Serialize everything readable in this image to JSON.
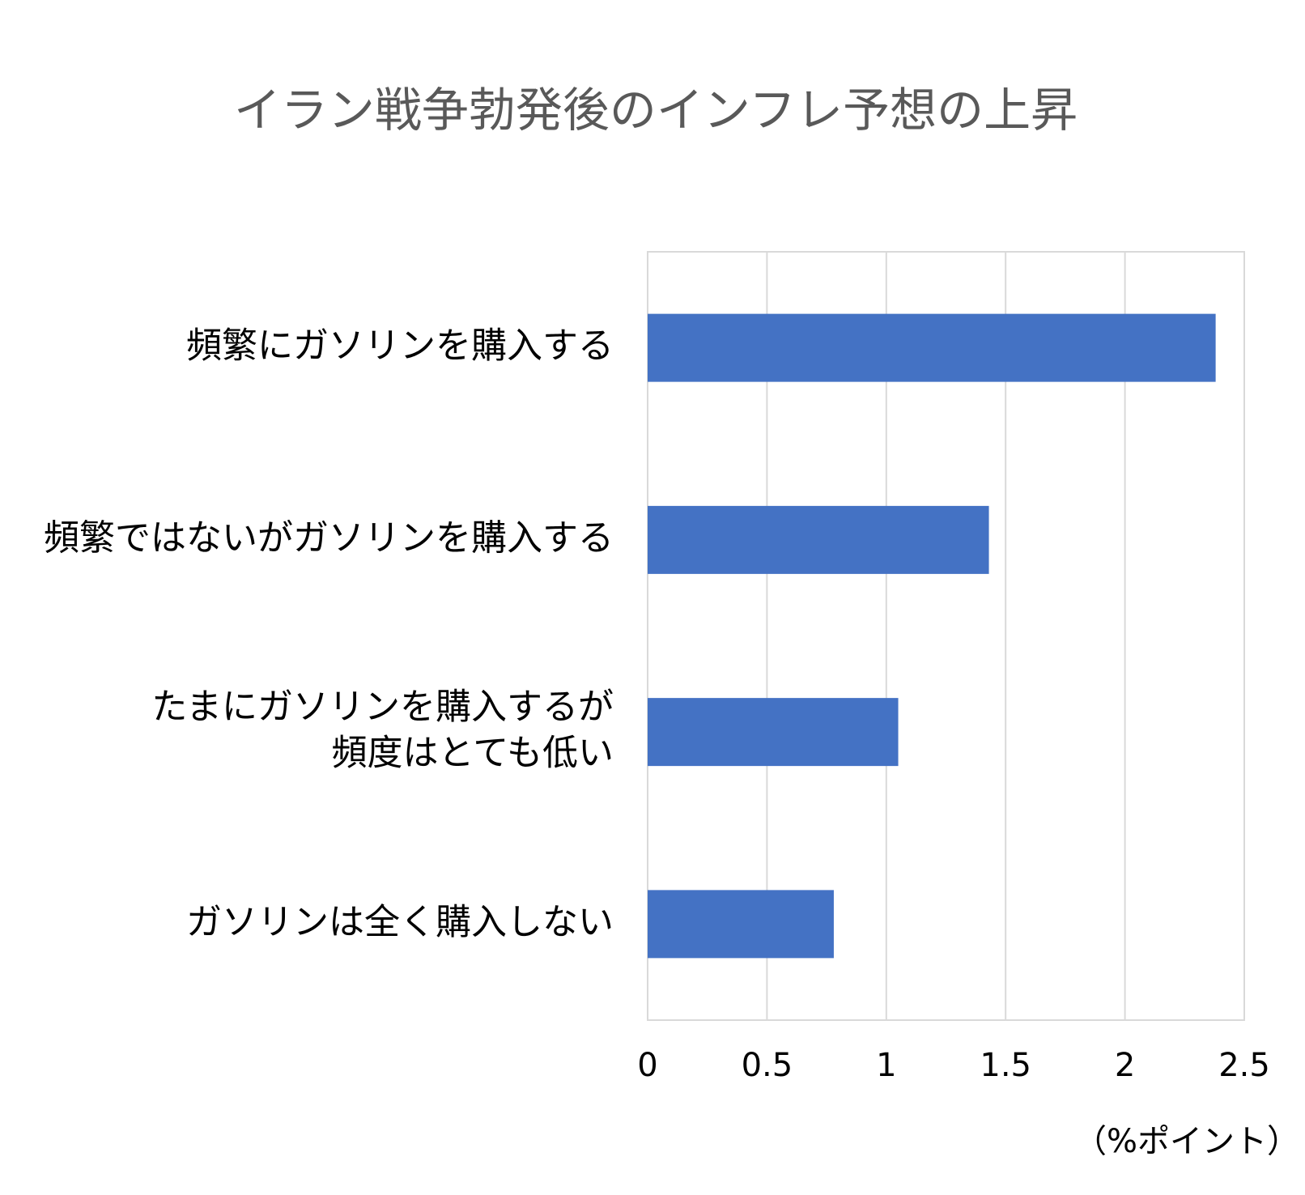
{
  "chart_data": {
    "type": "bar",
    "orientation": "horizontal",
    "title": "イラン戦争勃発後のインフレ予想の上昇",
    "x_label": "（%ポイント）",
    "categories": [
      "頻繁にガソリンを購入する",
      "頻繁ではないがガソリンを購入する",
      "たまにガソリンを購入するが\n頻度はとても低い",
      "ガソリンは全く購入しない"
    ],
    "values": [
      2.38,
      1.43,
      1.05,
      0.78
    ],
    "color": "#4472c4",
    "xlim": [
      0,
      2.5
    ],
    "xticks": [
      0,
      0.5,
      1,
      1.5,
      2,
      2.5
    ],
    "grid": true
  }
}
